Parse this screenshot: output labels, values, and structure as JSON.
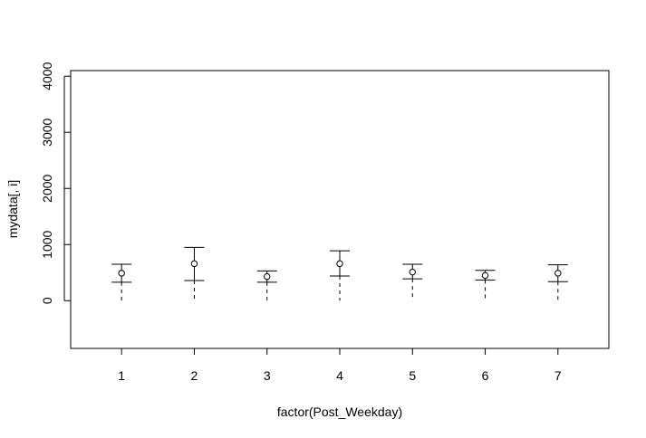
{
  "chart_data": {
    "type": "scatter",
    "title": "",
    "xlabel": "factor(Post_Weekday)",
    "ylabel": "mydata[, i]",
    "categories": [
      "1",
      "2",
      "3",
      "4",
      "5",
      "6",
      "7"
    ],
    "points": [
      {
        "x": "1",
        "mean": 490,
        "upper": 650,
        "lower": 330,
        "whisker_bottom": 0
      },
      {
        "x": "2",
        "mean": 660,
        "upper": 950,
        "lower": 360,
        "whisker_bottom": 0
      },
      {
        "x": "3",
        "mean": 430,
        "upper": 530,
        "lower": 330,
        "whisker_bottom": 0
      },
      {
        "x": "4",
        "mean": 660,
        "upper": 890,
        "lower": 440,
        "whisker_bottom": 0
      },
      {
        "x": "5",
        "mean": 510,
        "upper": 650,
        "lower": 390,
        "whisker_bottom": 0
      },
      {
        "x": "6",
        "mean": 450,
        "upper": 540,
        "lower": 370,
        "whisker_bottom": 0
      },
      {
        "x": "7",
        "mean": 490,
        "upper": 640,
        "lower": 340,
        "whisker_bottom": 0
      }
    ],
    "yticks": [
      0,
      1000,
      2000,
      3000,
      4000
    ],
    "ylim": [
      -850,
      4100
    ],
    "xlim": [
      0.3,
      7.7
    ],
    "grid": false,
    "colors": {
      "ink": "#000000",
      "background": "#ffffff"
    }
  }
}
